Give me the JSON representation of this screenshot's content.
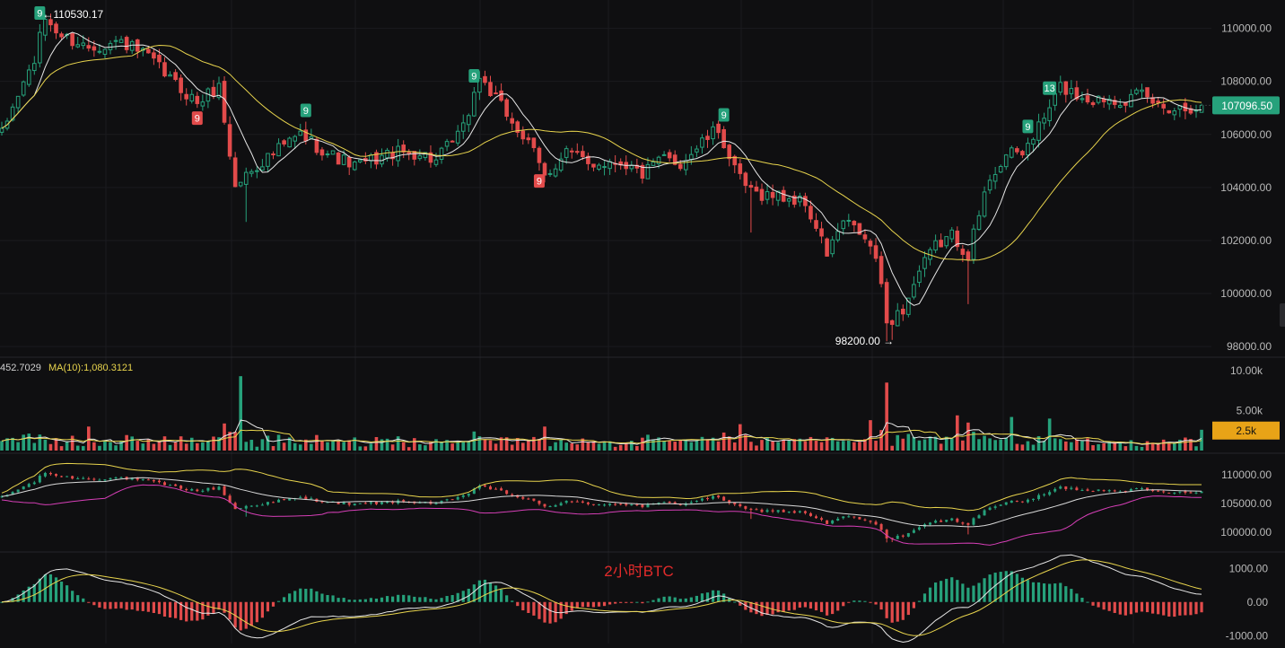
{
  "colors": {
    "background": "#0f0f11",
    "up": "#26a17b",
    "down": "#e24b4b",
    "ma_fast": "#e6e6e6",
    "ma_slow": "#e8d44d",
    "band_upper": "#e8d44d",
    "band_mid": "#d9d9d9",
    "band_lower": "#d63fb7",
    "price_tag": "#26a17b",
    "volume_tag": "#e8a317",
    "watermark": "#e22b2b"
  },
  "watermark": "2小时BTC",
  "main": {
    "price_label": "107096.50",
    "high_label": "110530.17",
    "low_label": "98200.00",
    "axis_ticks": [
      "110000.00",
      "108000.00",
      "106000.00",
      "104000.00",
      "102000.00",
      "100000.00",
      "98000.00"
    ],
    "markers": [
      {
        "text": "9",
        "type": "up",
        "i": 7
      },
      {
        "text": "9",
        "type": "down",
        "i": 36
      },
      {
        "text": "9",
        "type": "up",
        "i": 56
      },
      {
        "text": "9",
        "type": "up",
        "i": 87
      },
      {
        "text": "9",
        "type": "down",
        "i": 99
      },
      {
        "text": "9",
        "type": "up",
        "i": 133
      },
      {
        "text": "9",
        "type": "up",
        "i": 189
      },
      {
        "text": "13",
        "type": "up",
        "i": 193
      }
    ]
  },
  "volume": {
    "legend_left": "452.7029",
    "legend_ma": "MA(10):1,080.3121",
    "axis_ticks": [
      "10.00k",
      "5.00k"
    ],
    "current_label": "2.5k"
  },
  "boll": {
    "axis_ticks": [
      "110000.00",
      "105000.00",
      "100000.00"
    ]
  },
  "macd": {
    "axis_ticks": [
      "1000.00",
      "0.00",
      "-1000.00"
    ]
  },
  "chart_data": {
    "type": "candlestick",
    "title": "2小时BTC",
    "ylim": [
      97700,
      110900
    ],
    "price_anchors": [
      [
        0,
        106000
      ],
      [
        3,
        107500
      ],
      [
        6,
        108800
      ],
      [
        8,
        110400
      ],
      [
        11,
        109700
      ],
      [
        16,
        109300
      ],
      [
        22,
        109500
      ],
      [
        27,
        108900
      ],
      [
        32,
        107900
      ],
      [
        36,
        107200
      ],
      [
        40,
        107800
      ],
      [
        43,
        104000
      ],
      [
        45,
        104500
      ],
      [
        50,
        105300
      ],
      [
        55,
        106000
      ],
      [
        60,
        105300
      ],
      [
        65,
        104800
      ],
      [
        72,
        105300
      ],
      [
        77,
        105300
      ],
      [
        80,
        105000
      ],
      [
        85,
        106200
      ],
      [
        88,
        108200
      ],
      [
        91,
        107300
      ],
      [
        94,
        106500
      ],
      [
        98,
        105300
      ],
      [
        100,
        104400
      ],
      [
        104,
        105400
      ],
      [
        108,
        104900
      ],
      [
        114,
        105000
      ],
      [
        118,
        104500
      ],
      [
        122,
        105100
      ],
      [
        125,
        104900
      ],
      [
        129,
        105700
      ],
      [
        132,
        106200
      ],
      [
        135,
        104600
      ],
      [
        138,
        103800
      ],
      [
        143,
        103700
      ],
      [
        148,
        103400
      ],
      [
        152,
        101500
      ],
      [
        155,
        102700
      ],
      [
        158,
        102300
      ],
      [
        161,
        101400
      ],
      [
        163,
        98900
      ],
      [
        166,
        99400
      ],
      [
        169,
        100800
      ],
      [
        172,
        101800
      ],
      [
        175,
        102200
      ],
      [
        178,
        101500
      ],
      [
        182,
        104400
      ],
      [
        185,
        105200
      ],
      [
        188,
        105300
      ],
      [
        192,
        106600
      ],
      [
        195,
        107800
      ],
      [
        198,
        107500
      ],
      [
        201,
        107300
      ],
      [
        204,
        107400
      ],
      [
        207,
        107300
      ],
      [
        210,
        107500
      ],
      [
        213,
        107100
      ],
      [
        216,
        107000
      ],
      [
        221,
        107096.5
      ]
    ],
    "volume_ylim": [
      0,
      11000
    ],
    "boll_ylim": [
      97000,
      113000
    ],
    "macd_ylim": [
      -1100,
      1300
    ]
  }
}
